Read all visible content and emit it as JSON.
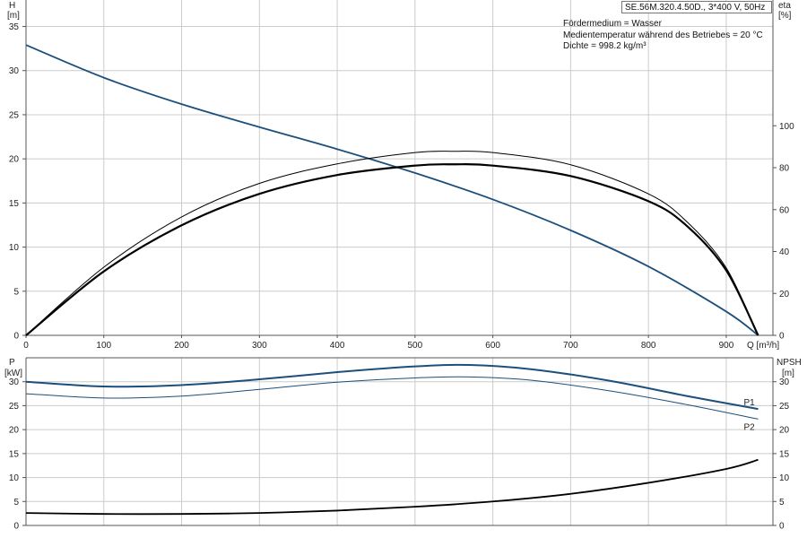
{
  "header": {
    "pump_title": "SE.56M.320.4.50D., 3*400 V, 50Hz",
    "info_lines": [
      "Fördermedium = Wasser",
      "Medientemperatur während des Betriebes = 20 °C",
      "Dichte = 998.2 kg/m³"
    ]
  },
  "colors": {
    "blue": "#1c4f7c",
    "black": "#000000",
    "grid": "#cccccc",
    "axis": "#555555"
  },
  "chart_data": [
    {
      "type": "line",
      "panel": "head-efficiency",
      "xlabel": "Q [m³/h]",
      "ylabel_left": [
        "H",
        "[m]"
      ],
      "ylabel_right": [
        "eta",
        "[%]"
      ],
      "xlim": [
        0,
        960
      ],
      "ylim_left": [
        0,
        38
      ],
      "ylim_right": [
        0,
        160
      ],
      "x_ticks": [
        0,
        100,
        200,
        300,
        400,
        500,
        600,
        700,
        800,
        900
      ],
      "x_tick_labels": [
        "0",
        "100",
        "200",
        "300",
        "400",
        "500",
        "600",
        "700",
        "800",
        "900"
      ],
      "y_ticks_left": [
        0,
        5,
        10,
        15,
        20,
        25,
        30,
        35
      ],
      "y_ticks_right": [
        0,
        20,
        40,
        60,
        80,
        100
      ],
      "grid": true,
      "series": [
        {
          "name": "",
          "axis": "left",
          "color": "#1c4f7c",
          "width": 1.8,
          "x": [
            0,
            100,
            200,
            300,
            400,
            500,
            600,
            700,
            800,
            900,
            941
          ],
          "y": [
            32.9,
            29.2,
            26.2,
            23.6,
            21.1,
            18.4,
            15.4,
            11.9,
            7.8,
            2.7,
            0
          ]
        },
        {
          "name": "",
          "axis": "right",
          "color": "#000000",
          "width": 1.0,
          "x": [
            0,
            100,
            200,
            300,
            400,
            500,
            550,
            600,
            700,
            800,
            850,
            900,
            941
          ],
          "y": [
            0,
            32.5,
            56.5,
            72.5,
            81.8,
            87.2,
            87.8,
            87.2,
            81.4,
            67.5,
            54.0,
            32.2,
            0
          ]
        },
        {
          "name": "",
          "axis": "right",
          "color": "#000000",
          "width": 2.2,
          "x": [
            0,
            100,
            200,
            300,
            400,
            500,
            550,
            600,
            700,
            800,
            850,
            900,
            941
          ],
          "y": [
            0,
            30.5,
            52.5,
            67.5,
            76.5,
            81.0,
            81.6,
            81.0,
            76.0,
            64.0,
            52.0,
            31.0,
            0
          ]
        }
      ]
    },
    {
      "type": "line",
      "panel": "power-npsh",
      "ylabel_left": [
        "P",
        "[kW]"
      ],
      "ylabel_right": [
        "NPSH",
        "[m]"
      ],
      "xlim": [
        0,
        960
      ],
      "ylim_left": [
        0,
        35
      ],
      "ylim_right": [
        0,
        35
      ],
      "y_ticks_left": [
        0,
        5,
        10,
        15,
        20,
        25,
        30
      ],
      "y_ticks_right": [
        0,
        5,
        10,
        15,
        20,
        25,
        30
      ],
      "grid": true,
      "series": [
        {
          "name": "P1",
          "axis": "left",
          "color": "#1c4f7c",
          "width": 2.0,
          "x": [
            0,
            100,
            200,
            300,
            400,
            500,
            570,
            650,
            750,
            850,
            941
          ],
          "y": [
            30.0,
            29.0,
            29.3,
            30.5,
            32.0,
            33.2,
            33.5,
            32.6,
            30.2,
            27.0,
            24.3
          ]
        },
        {
          "name": "P2",
          "axis": "left",
          "color": "#1c4f7c",
          "width": 1.0,
          "x": [
            0,
            100,
            200,
            300,
            400,
            500,
            570,
            650,
            750,
            850,
            941
          ],
          "y": [
            27.5,
            26.6,
            27.0,
            28.4,
            29.9,
            30.8,
            31.0,
            30.3,
            28.1,
            25.2,
            22.2
          ]
        },
        {
          "name": "",
          "axis": "right",
          "color": "#000000",
          "width": 1.8,
          "x": [
            0,
            100,
            200,
            300,
            400,
            500,
            600,
            700,
            800,
            900,
            941
          ],
          "y": [
            2.6,
            2.4,
            2.4,
            2.6,
            3.1,
            3.9,
            5.0,
            6.6,
            8.9,
            11.8,
            13.7
          ]
        }
      ]
    }
  ]
}
